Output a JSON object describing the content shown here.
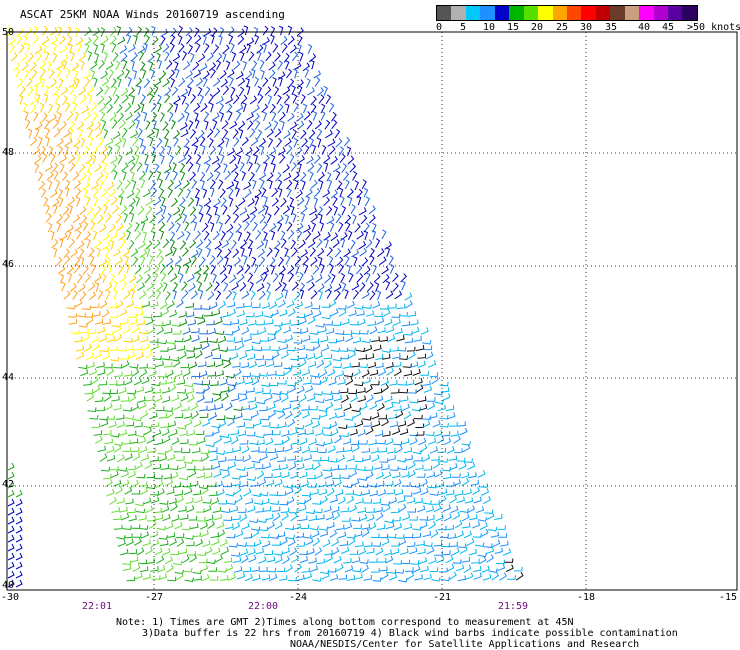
{
  "title": "ASCAT 25KM NOAA Winds 20160719 ascending",
  "legend": {
    "colors": [
      "#555555",
      "#b0b0b0",
      "#00c8ff",
      "#1e90ff",
      "#0000c8",
      "#00b400",
      "#55e000",
      "#ffff00",
      "#ffa500",
      "#ff4500",
      "#ff0000",
      "#c00000",
      "#6b3a2a",
      "#c8a080",
      "#ff00ff",
      "#b000d0",
      "#5a00a0",
      "#2a0060"
    ],
    "labels": [
      "0",
      "5",
      "10",
      "15",
      "20",
      "25",
      "30",
      "35",
      "40",
      "45",
      ">50 knots"
    ]
  },
  "axes": {
    "lat_labels": [
      "50",
      "48",
      "46",
      "44",
      "42",
      "40"
    ],
    "lon_labels": [
      "-30",
      "-27",
      "-24",
      "-21",
      "-18",
      "-15"
    ],
    "lat_range": [
      40,
      50
    ],
    "lon_range": [
      -30,
      -15
    ]
  },
  "times": [
    "22:01",
    "22:00",
    "21:59"
  ],
  "notes": [
    "Note: 1) Times are GMT 2)Times along bottom correspond to measurement at 45N",
    "3)Data buffer is 22 hrs from 20160719 4) Black wind barbs indicate possible contamination",
    "NOAA/NESDIS/Center for Satellite Applications and Research"
  ],
  "colors": {
    "grid": "#000000",
    "time_text": "#6a0d7a"
  }
}
